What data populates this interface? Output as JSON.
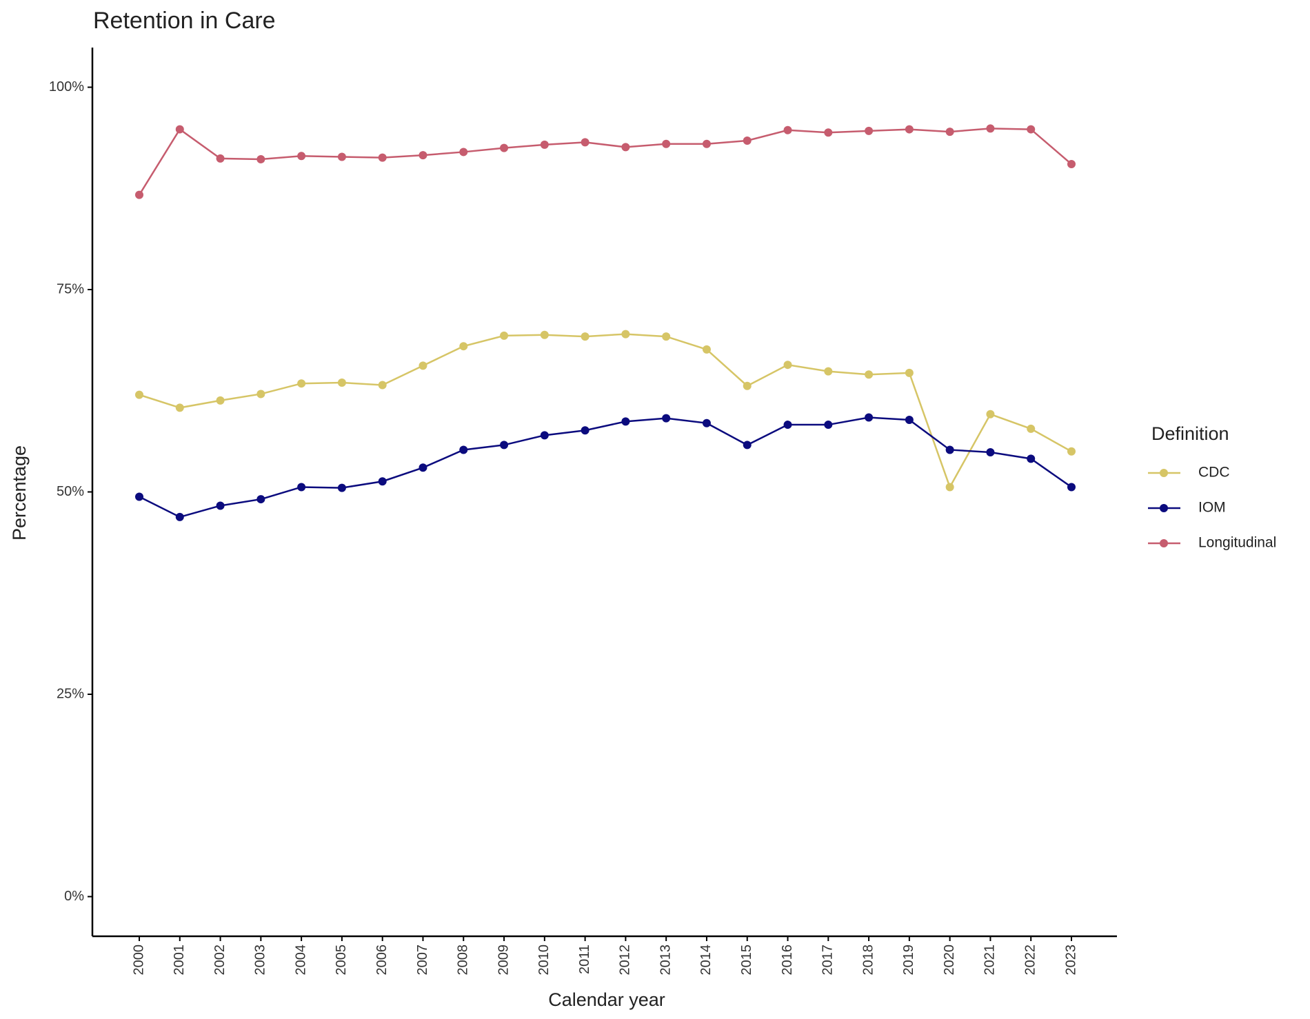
{
  "chart_data": {
    "type": "line",
    "title": "Retention in Care",
    "x_label": "Calendar year",
    "y_label": "Percentage",
    "legend_title": "Definition",
    "legend_position": "right",
    "categories": [
      "2000",
      "2001",
      "2002",
      "2003",
      "2004",
      "2005",
      "2006",
      "2007",
      "2008",
      "2009",
      "2010",
      "2011",
      "2012",
      "2013",
      "2014",
      "2015",
      "2016",
      "2017",
      "2018",
      "2019",
      "2020",
      "2021",
      "2022",
      "2023"
    ],
    "series": [
      {
        "name": "CDC",
        "color": "#d6c566",
        "values": [
          62.0,
          60.4,
          61.3,
          62.1,
          63.4,
          63.5,
          63.2,
          65.6,
          68.0,
          69.3,
          69.4,
          69.2,
          69.5,
          69.2,
          67.6,
          63.1,
          65.7,
          64.9,
          64.5,
          64.7,
          50.6,
          59.6,
          57.8,
          55.0
        ]
      },
      {
        "name": "IOM",
        "color": "#0b0b7e",
        "values": [
          49.4,
          46.9,
          48.3,
          49.1,
          50.6,
          50.5,
          51.3,
          53.0,
          55.2,
          55.8,
          57.0,
          57.6,
          58.7,
          59.1,
          58.5,
          55.8,
          58.3,
          58.3,
          59.2,
          58.9,
          55.2,
          54.9,
          54.1,
          50.6
        ]
      },
      {
        "name": "Longitudinal",
        "color": "#c65c6e",
        "values": [
          86.7,
          94.8,
          91.2,
          91.1,
          91.5,
          91.4,
          91.3,
          91.6,
          92.0,
          92.5,
          92.9,
          93.2,
          92.6,
          93.0,
          93.0,
          93.4,
          94.7,
          94.4,
          94.6,
          94.8,
          94.5,
          94.9,
          94.8,
          90.5
        ]
      }
    ],
    "ylim": [
      -4.9,
      104.9
    ],
    "yticks": [
      {
        "value": 0,
        "label": "0%"
      },
      {
        "value": 25,
        "label": "25%"
      },
      {
        "value": 50,
        "label": "50%"
      },
      {
        "value": 75,
        "label": "75%"
      },
      {
        "value": 100,
        "label": "100%"
      }
    ],
    "grid": false
  }
}
